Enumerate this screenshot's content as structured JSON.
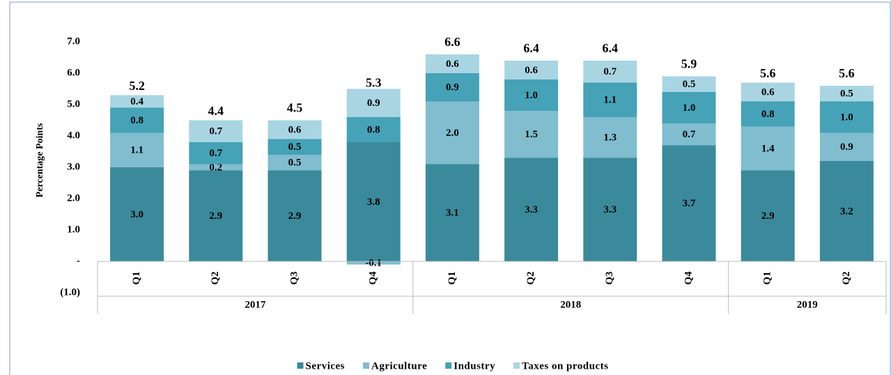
{
  "chart_data": {
    "type": "stacked_bar",
    "y_label": "Percentage Points",
    "groups": [
      {
        "name": "2017",
        "categories": [
          "Q1",
          "Q2",
          "Q3",
          "Q4"
        ]
      },
      {
        "name": "2018",
        "categories": [
          "Q1",
          "Q2",
          "Q3",
          "Q4"
        ]
      },
      {
        "name": "2019",
        "categories": [
          "Q1",
          "Q2"
        ]
      }
    ],
    "series": [
      {
        "name": "Services",
        "color": "#3a8a9b",
        "values": [
          3.0,
          2.9,
          2.9,
          3.8,
          3.1,
          3.3,
          3.3,
          3.7,
          2.9,
          3.2
        ],
        "value_labels": [
          "3.0",
          "2.9",
          "2.9",
          "3.8",
          "3.1",
          "3.3",
          "3.3",
          "3.7",
          "2.9",
          "3.2"
        ]
      },
      {
        "name": "Agriculture",
        "color": "#80bdcf",
        "values": [
          1.1,
          0.2,
          0.5,
          -0.1,
          2.0,
          1.5,
          1.3,
          0.7,
          1.4,
          0.9
        ],
        "value_labels": [
          "1.1",
          "0.2",
          "0.5",
          "-0.1",
          "2.0",
          "1.5",
          "1.3",
          "0.7",
          "1.4",
          "0.9"
        ]
      },
      {
        "name": "Industry",
        "color": "#45a2b7",
        "values": [
          0.8,
          0.7,
          0.5,
          0.8,
          0.9,
          1.0,
          1.1,
          1.0,
          0.8,
          1.0
        ],
        "value_labels": [
          "0.8",
          "0.7",
          "0.5",
          "0.8",
          "0.9",
          "1.0",
          "1.1",
          "1.0",
          "0.8",
          "1.0"
        ]
      },
      {
        "name": "Taxes on products",
        "color": "#a9d5e2",
        "values": [
          0.4,
          0.7,
          0.6,
          0.9,
          0.6,
          0.6,
          0.7,
          0.5,
          0.6,
          0.5
        ],
        "value_labels": [
          "0.4",
          "0.7",
          "0.6",
          "0.9",
          "0.6",
          "0.6",
          "0.7",
          "0.5",
          "0.6",
          "0.5"
        ]
      }
    ],
    "totals": {
      "values": [
        5.2,
        4.4,
        4.5,
        5.3,
        6.6,
        6.4,
        6.4,
        5.9,
        5.6,
        5.6
      ],
      "value_labels": [
        "5.2",
        "4.4",
        "4.5",
        "5.3",
        "6.6",
        "6.4",
        "6.4",
        "5.9",
        "5.6",
        "5.6"
      ]
    },
    "ylim": [
      -1,
      7
    ],
    "yticks": [
      {
        "value": -1,
        "label": "(1.0)"
      },
      {
        "value": 0,
        "label": "-"
      },
      {
        "value": 1,
        "label": "1.0"
      },
      {
        "value": 2,
        "label": "2.0"
      },
      {
        "value": 3,
        "label": "3.0"
      },
      {
        "value": 4,
        "label": "4.0"
      },
      {
        "value": 5,
        "label": "5.0"
      },
      {
        "value": 6,
        "label": "6.0"
      },
      {
        "value": 7,
        "label": "7.0"
      }
    ],
    "grid": false,
    "legend": "bottom"
  }
}
